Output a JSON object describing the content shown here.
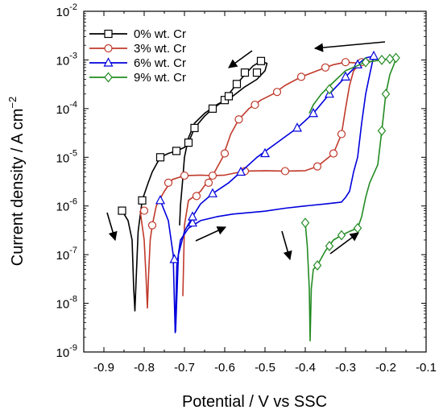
{
  "chart_data": {
    "type": "line",
    "title": "",
    "xlabel": "Potential / V vs SSC",
    "ylabel_main": "Current density / A cm",
    "ylabel_sup": "−2",
    "xlim": [
      -0.95,
      -0.1
    ],
    "ylim": [
      1e-09,
      0.01
    ],
    "yscale": "log",
    "grid": false,
    "legend_position": "top-left",
    "x_ticks": [
      -0.9,
      -0.8,
      -0.7,
      -0.6,
      -0.5,
      -0.4,
      -0.3,
      -0.2,
      -0.1
    ],
    "x_tick_labels": [
      "-0.9",
      "-0.8",
      "-0.7",
      "-0.6",
      "-0.5",
      "-0.4",
      "-0.3",
      "-0.2",
      "-0.1"
    ],
    "y_ticks": [
      {
        "value": 1e-09,
        "base": "10",
        "exp": "-9"
      },
      {
        "value": 1e-08,
        "base": "10",
        "exp": "-8"
      },
      {
        "value": 1e-07,
        "base": "10",
        "exp": "-7"
      },
      {
        "value": 1e-06,
        "base": "10",
        "exp": "-6"
      },
      {
        "value": 1e-05,
        "base": "10",
        "exp": "-5"
      },
      {
        "value": 0.0001,
        "base": "10",
        "exp": "-4"
      },
      {
        "value": 0.001,
        "base": "10",
        "exp": "-3"
      },
      {
        "value": 0.01,
        "base": "10",
        "exp": "-2"
      }
    ],
    "series": [
      {
        "name": "0% wt. Cr",
        "color": "#000000",
        "marker": "square",
        "line": [
          [
            -0.855,
            8e-07
          ],
          [
            -0.84,
            5e-07
          ],
          [
            -0.83,
            2e-07
          ],
          [
            -0.826,
            2e-08
          ],
          [
            -0.823,
            7e-09
          ],
          [
            -0.82,
            3e-08
          ],
          [
            -0.815,
            3e-07
          ],
          [
            -0.805,
            1.3e-06
          ],
          [
            -0.79,
            3e-06
          ],
          [
            -0.78,
            5e-06
          ],
          [
            -0.76,
            1e-05
          ],
          [
            -0.74,
            1.2e-05
          ],
          [
            -0.72,
            1.35e-05
          ],
          [
            -0.7,
            1.6e-05
          ],
          [
            -0.69,
            2e-05
          ],
          [
            -0.675,
            4e-05
          ],
          [
            -0.65,
            7e-05
          ],
          [
            -0.63,
            0.0001
          ],
          [
            -0.61,
            0.00013
          ],
          [
            -0.59,
            0.0002
          ],
          [
            -0.57,
            0.00032
          ],
          [
            -0.55,
            0.0005
          ],
          [
            -0.53,
            0.00075
          ],
          [
            -0.51,
            0.00095
          ],
          [
            -0.495,
            0.00085
          ],
          [
            -0.5,
            0.0006
          ],
          [
            -0.52,
            0.0004
          ],
          [
            -0.55,
            0.00028
          ],
          [
            -0.58,
            0.00018
          ],
          [
            -0.62,
            0.00012
          ],
          [
            -0.65,
            8e-05
          ],
          [
            -0.675,
            5e-05
          ],
          [
            -0.69,
            2.5e-05
          ],
          [
            -0.7,
            1e-05
          ],
          [
            -0.705,
            3e-06
          ],
          [
            -0.71,
            1e-06
          ],
          [
            -0.712,
            4e-07
          ]
        ],
        "markers": [
          [
            -0.855,
            8e-07
          ],
          [
            -0.805,
            1.3e-06
          ],
          [
            -0.76,
            1e-05
          ],
          [
            -0.72,
            1.35e-05
          ],
          [
            -0.69,
            2e-05
          ],
          [
            -0.675,
            4e-05
          ],
          [
            -0.63,
            0.0001
          ],
          [
            -0.6,
            0.00015
          ],
          [
            -0.57,
            0.00032
          ],
          [
            -0.55,
            0.00055
          ],
          [
            -0.51,
            0.00095
          ],
          [
            -0.52,
            0.00055
          ],
          [
            -0.59,
            0.00018
          ]
        ]
      },
      {
        "name": "3% wt. Cr",
        "color": "#c0392b",
        "marker": "circle",
        "line": [
          [
            -0.81,
            8e-07
          ],
          [
            -0.8,
            2e-07
          ],
          [
            -0.795,
            3e-08
          ],
          [
            -0.792,
            8e-09
          ],
          [
            -0.789,
            4e-08
          ],
          [
            -0.785,
            2e-07
          ],
          [
            -0.78,
            4e-07
          ],
          [
            -0.77,
            1e-06
          ],
          [
            -0.75,
            2e-06
          ],
          [
            -0.73,
            3.5e-06
          ],
          [
            -0.7,
            4.2e-06
          ],
          [
            -0.66,
            4.3e-06
          ],
          [
            -0.63,
            4.2e-06
          ],
          [
            -0.6,
            4.3e-06
          ],
          [
            -0.55,
            5.2e-06
          ],
          [
            -0.5,
            5.3e-06
          ],
          [
            -0.45,
            5.2e-06
          ],
          [
            -0.4,
            5.3e-06
          ],
          [
            -0.37,
            6.5e-06
          ],
          [
            -0.33,
            1.2e-05
          ],
          [
            -0.31,
            3e-05
          ],
          [
            -0.3,
            0.0001
          ],
          [
            -0.29,
            0.0003
          ],
          [
            -0.28,
            0.0006
          ],
          [
            -0.26,
            0.0009
          ],
          [
            -0.245,
            0.001
          ],
          [
            -0.24,
            0.0009
          ],
          [
            -0.26,
            0.00085
          ],
          [
            -0.3,
            0.0009
          ],
          [
            -0.33,
            0.0008
          ],
          [
            -0.37,
            0.0006
          ],
          [
            -0.41,
            0.00045
          ],
          [
            -0.45,
            0.0003
          ],
          [
            -0.48,
            0.0002
          ],
          [
            -0.51,
            0.00015
          ],
          [
            -0.54,
            0.0001
          ],
          [
            -0.565,
            6e-05
          ],
          [
            -0.585,
            3e-05
          ],
          [
            -0.605,
            1e-05
          ],
          [
            -0.625,
            5e-06
          ],
          [
            -0.645,
            3e-06
          ],
          [
            -0.66,
            2e-06
          ],
          [
            -0.675,
            1.6e-06
          ],
          [
            -0.69,
            1.3e-06
          ],
          [
            -0.7,
            4e-07
          ],
          [
            -0.704,
            1.4e-08
          ]
        ],
        "markers": [
          [
            -0.8,
            8e-07
          ],
          [
            -0.78,
            4e-07
          ],
          [
            -0.74,
            3e-06
          ],
          [
            -0.7,
            4.2e-06
          ],
          [
            -0.63,
            4.2e-06
          ],
          [
            -0.55,
            5.2e-06
          ],
          [
            -0.45,
            5.2e-06
          ],
          [
            -0.37,
            6.5e-06
          ],
          [
            -0.33,
            1.2e-05
          ],
          [
            -0.31,
            3e-05
          ],
          [
            -0.26,
            0.0009
          ],
          [
            -0.3,
            0.0009
          ],
          [
            -0.35,
            0.0007
          ],
          [
            -0.41,
            0.00045
          ],
          [
            -0.47,
            0.00022
          ],
          [
            -0.525,
            0.00012
          ],
          [
            -0.565,
            6e-05
          ],
          [
            -0.6,
            1.2e-05
          ],
          [
            -0.64,
            3e-06
          ],
          [
            -0.67,
            1.6e-06
          ]
        ]
      },
      {
        "name": "6% wt. Cr",
        "color": "#0000dd",
        "marker": "triangle",
        "line": [
          [
            -0.76,
            1.3e-06
          ],
          [
            -0.74,
            5e-07
          ],
          [
            -0.728,
            1e-07
          ],
          [
            -0.723,
            2.5e-09
          ],
          [
            -0.719,
            6e-08
          ],
          [
            -0.71,
            2e-07
          ],
          [
            -0.69,
            3.5e-07
          ],
          [
            -0.66,
            5e-07
          ],
          [
            -0.62,
            6e-07
          ],
          [
            -0.58,
            6.8e-07
          ],
          [
            -0.5,
            7.8e-07
          ],
          [
            -0.45,
            9e-07
          ],
          [
            -0.4,
            1e-06
          ],
          [
            -0.35,
            1.1e-06
          ],
          [
            -0.31,
            1.2e-06
          ],
          [
            -0.3,
            1.5e-06
          ],
          [
            -0.29,
            2e-06
          ],
          [
            -0.28,
            5e-06
          ],
          [
            -0.27,
            1e-05
          ],
          [
            -0.26,
            5e-05
          ],
          [
            -0.25,
            0.0002
          ],
          [
            -0.24,
            0.0005
          ],
          [
            -0.23,
            0.0012
          ],
          [
            -0.23,
            0.0012
          ],
          [
            -0.25,
            0.0011
          ],
          [
            -0.27,
            0.0008
          ],
          [
            -0.3,
            0.00045
          ],
          [
            -0.34,
            0.0002
          ],
          [
            -0.38,
            8e-05
          ],
          [
            -0.42,
            4e-05
          ],
          [
            -0.47,
            2e-05
          ],
          [
            -0.52,
            1e-05
          ],
          [
            -0.56,
            5e-06
          ],
          [
            -0.59,
            3e-06
          ],
          [
            -0.63,
            1.8e-06
          ],
          [
            -0.66,
            1.1e-06
          ],
          [
            -0.68,
            6e-07
          ],
          [
            -0.7,
            3e-07
          ],
          [
            -0.715,
            1e-07
          ],
          [
            -0.722,
            2.6e-09
          ]
        ],
        "markers": [
          [
            -0.76,
            1.3e-06
          ],
          [
            -0.725,
            8e-08
          ],
          [
            -0.68,
            4.5e-07
          ],
          [
            -0.23,
            0.0012
          ],
          [
            -0.27,
            0.0008
          ],
          [
            -0.3,
            0.00045
          ],
          [
            -0.34,
            0.0002
          ],
          [
            -0.38,
            8e-05
          ],
          [
            -0.42,
            4e-05
          ],
          [
            -0.5,
            1.2e-05
          ],
          [
            -0.56,
            5e-06
          ],
          [
            -0.63,
            1.8e-06
          ],
          [
            -0.68,
            6e-07
          ]
        ]
      },
      {
        "name": "9% wt. Cr",
        "color": "#238b23",
        "marker": "diamond",
        "line": [
          [
            -0.4,
            4.5e-07
          ],
          [
            -0.395,
            1.5e-07
          ],
          [
            -0.39,
            2e-08
          ],
          [
            -0.388,
            1.7e-09
          ],
          [
            -0.385,
            2e-08
          ],
          [
            -0.38,
            5e-08
          ],
          [
            -0.37,
            6e-08
          ],
          [
            -0.35,
            1.2e-07
          ],
          [
            -0.33,
            2e-07
          ],
          [
            -0.31,
            2.5e-07
          ],
          [
            -0.29,
            3e-07
          ],
          [
            -0.27,
            3.5e-07
          ],
          [
            -0.26,
            6e-07
          ],
          [
            -0.25,
            1.5e-06
          ],
          [
            -0.24,
            3e-06
          ],
          [
            -0.22,
            7e-06
          ],
          [
            -0.21,
            3.5e-05
          ],
          [
            -0.2,
            0.0002
          ],
          [
            -0.19,
            0.0005
          ],
          [
            -0.18,
            0.0008
          ],
          [
            -0.175,
            0.0011
          ],
          [
            -0.175,
            0.0011
          ],
          [
            -0.19,
            0.00105
          ],
          [
            -0.21,
            0.001
          ],
          [
            -0.25,
            0.0009
          ],
          [
            -0.3,
            0.0006
          ],
          [
            -0.33,
            0.00035
          ],
          [
            -0.36,
            0.0002
          ],
          [
            -0.38,
            0.00012
          ],
          [
            -0.39,
            8e-05
          ]
        ],
        "markers": [
          [
            -0.4,
            4.5e-07
          ],
          [
            -0.37,
            6e-08
          ],
          [
            -0.34,
            1.5e-07
          ],
          [
            -0.31,
            2.5e-07
          ],
          [
            -0.27,
            3.5e-07
          ],
          [
            -0.21,
            3.5e-05
          ],
          [
            -0.2,
            0.0002
          ],
          [
            -0.175,
            0.0011
          ],
          [
            -0.19,
            0.00105
          ],
          [
            -0.21,
            0.001
          ],
          [
            -0.25,
            0.0009
          ],
          [
            -0.34,
            0.00025
          ]
        ]
      }
    ]
  }
}
